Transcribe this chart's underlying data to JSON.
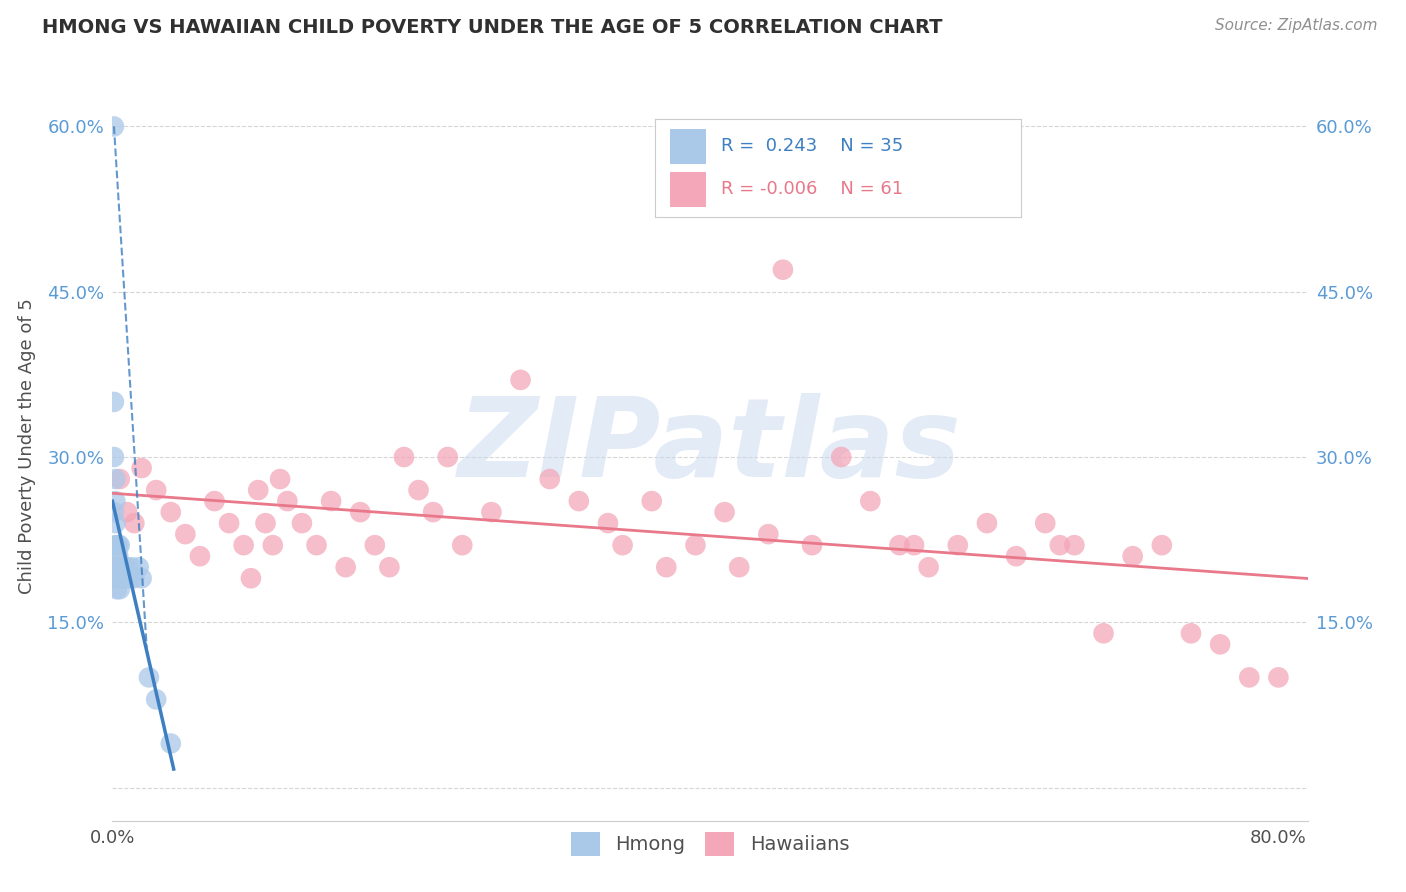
{
  "title": "HMONG VS HAWAIIAN CHILD POVERTY UNDER THE AGE OF 5 CORRELATION CHART",
  "source": "Source: ZipAtlas.com",
  "ylabel": "Child Poverty Under the Age of 5",
  "watermark": "ZIPatlas",
  "hmong_color": "#aac8e8",
  "hawaiian_color": "#f4a7b9",
  "hmong_line_color": "#3d7fc1",
  "hawaiian_line_color": "#e8788a",
  "bg_color": "#ffffff",
  "grid_color": "#cccccc",
  "title_color": "#303030",
  "axis_color": "#505050",
  "source_color": "#909090",
  "tick_color": "#5b9bd5",
  "hmong_scatter_x": [
    0.001,
    0.001,
    0.001,
    0.001,
    0.002,
    0.002,
    0.002,
    0.002,
    0.002,
    0.003,
    0.003,
    0.003,
    0.003,
    0.003,
    0.004,
    0.004,
    0.004,
    0.004,
    0.005,
    0.005,
    0.005,
    0.006,
    0.006,
    0.007,
    0.008,
    0.009,
    0.01,
    0.012,
    0.013,
    0.015,
    0.018,
    0.02,
    0.025,
    0.03,
    0.04
  ],
  "hmong_scatter_y": [
    0.6,
    0.35,
    0.3,
    0.25,
    0.28,
    0.26,
    0.24,
    0.22,
    0.2,
    0.22,
    0.21,
    0.2,
    0.19,
    0.18,
    0.22,
    0.21,
    0.2,
    0.19,
    0.22,
    0.2,
    0.18,
    0.2,
    0.19,
    0.19,
    0.2,
    0.19,
    0.2,
    0.19,
    0.2,
    0.19,
    0.2,
    0.19,
    0.1,
    0.08,
    0.04
  ],
  "hawaiian_scatter_x": [
    0.005,
    0.01,
    0.015,
    0.02,
    0.03,
    0.04,
    0.05,
    0.06,
    0.07,
    0.08,
    0.09,
    0.095,
    0.1,
    0.105,
    0.11,
    0.115,
    0.12,
    0.13,
    0.14,
    0.15,
    0.16,
    0.17,
    0.18,
    0.19,
    0.2,
    0.21,
    0.22,
    0.23,
    0.24,
    0.26,
    0.28,
    0.3,
    0.32,
    0.34,
    0.35,
    0.37,
    0.38,
    0.4,
    0.42,
    0.43,
    0.46,
    0.48,
    0.5,
    0.52,
    0.54,
    0.56,
    0.58,
    0.6,
    0.62,
    0.64,
    0.66,
    0.68,
    0.7,
    0.72,
    0.74,
    0.76,
    0.78,
    0.8,
    0.55,
    0.45,
    0.65
  ],
  "hawaiian_scatter_y": [
    0.28,
    0.25,
    0.24,
    0.29,
    0.27,
    0.25,
    0.23,
    0.21,
    0.26,
    0.24,
    0.22,
    0.19,
    0.27,
    0.24,
    0.22,
    0.28,
    0.26,
    0.24,
    0.22,
    0.26,
    0.2,
    0.25,
    0.22,
    0.2,
    0.3,
    0.27,
    0.25,
    0.3,
    0.22,
    0.25,
    0.37,
    0.28,
    0.26,
    0.24,
    0.22,
    0.26,
    0.2,
    0.22,
    0.25,
    0.2,
    0.47,
    0.22,
    0.3,
    0.26,
    0.22,
    0.2,
    0.22,
    0.24,
    0.21,
    0.24,
    0.22,
    0.14,
    0.21,
    0.22,
    0.14,
    0.13,
    0.1,
    0.1,
    0.22,
    0.23,
    0.22
  ],
  "xlim": [
    0.0,
    0.82
  ],
  "ylim": [
    -0.03,
    0.65
  ],
  "yticks": [
    0.0,
    0.15,
    0.3,
    0.45,
    0.6
  ],
  "ytick_labels": [
    "",
    "15.0%",
    "30.0%",
    "45.0%",
    "60.0%"
  ],
  "xtick_left": "0.0%",
  "xtick_right": "80.0%"
}
